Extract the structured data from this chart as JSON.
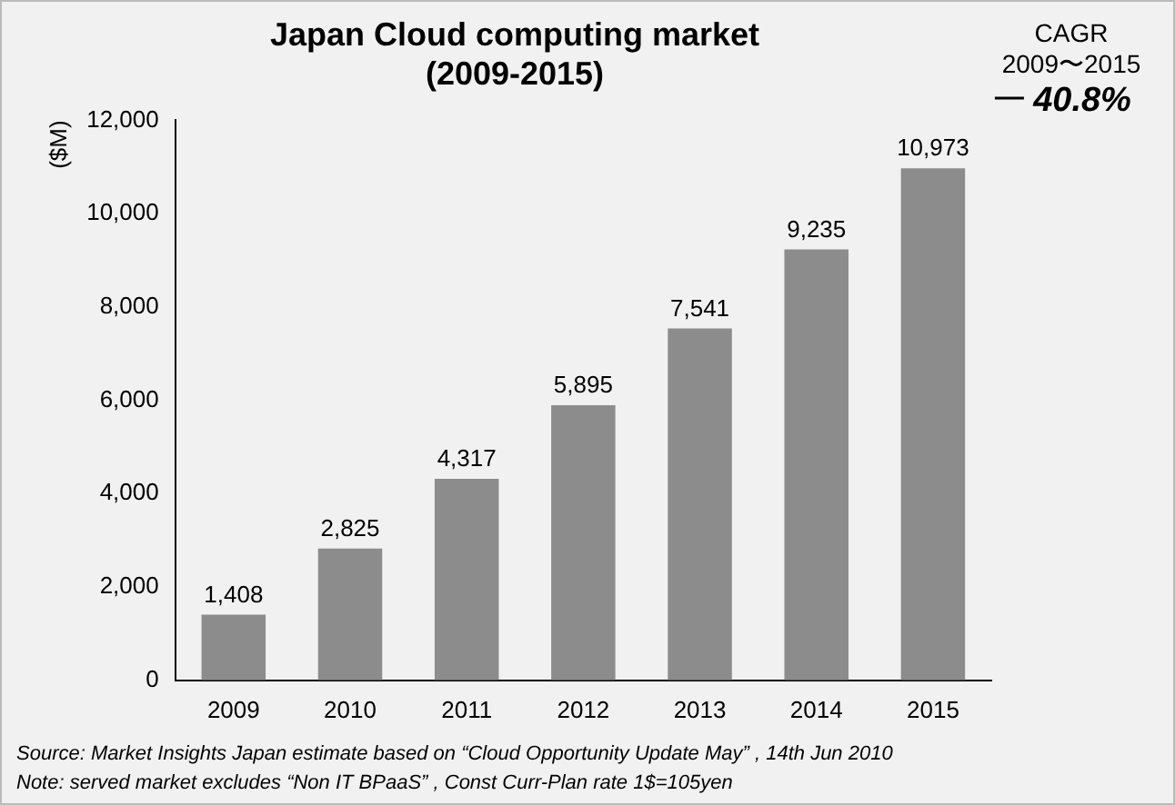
{
  "chart_data": {
    "type": "bar",
    "title": "Japan Cloud computing market\n(2009-2015)",
    "ylabel": "($M)",
    "categories": [
      "2009",
      "2010",
      "2011",
      "2012",
      "2013",
      "2014",
      "2015"
    ],
    "values": [
      1408,
      2825,
      4317,
      5895,
      7541,
      9235,
      10973
    ],
    "value_labels": [
      "1,408",
      "2,825",
      "4,317",
      "5,895",
      "7,541",
      "9,235",
      "10,973"
    ],
    "color": "#8c8c8c",
    "ylim": [
      0,
      12000
    ],
    "yticks": [
      0,
      {
        "value": 2000,
        "label": "2,000"
      },
      {
        "value": 4000,
        "label": "4,000"
      },
      {
        "value": 6000,
        "label": "6,000"
      },
      {
        "value": 8000,
        "label": "8,000"
      },
      {
        "value": 10000,
        "label": "10,000"
      },
      {
        "value": 12000,
        "label": "12,000"
      }
    ],
    "grid": false,
    "legend": false,
    "annotations": [
      "CAGR",
      "2009〜2015",
      "40.8%",
      "Source: Market Insights Japan estimate based on “Cloud Opportunity Update May” , 14th Jun 2010",
      "Note: served market excludes “Non IT BPaaS” , Const Curr-Plan rate 1$=105yen"
    ]
  }
}
